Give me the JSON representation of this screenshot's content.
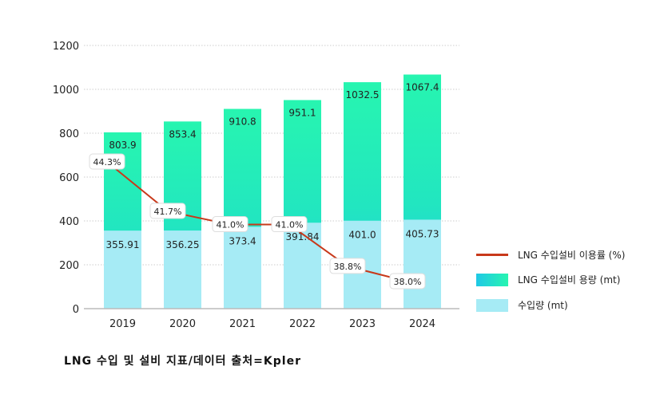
{
  "chart_data": {
    "type": "bar",
    "categories": [
      "2019",
      "2020",
      "2021",
      "2022",
      "2023",
      "2024"
    ],
    "ylim": [
      0,
      1200
    ],
    "yticks": [
      0,
      200,
      400,
      600,
      800,
      1000,
      1200
    ],
    "grid": true,
    "legend_placement": "right",
    "series": [
      {
        "name": "LNG 수입설비 이용률 (%)",
        "type": "line",
        "values": [
          44.3,
          41.7,
          41.0,
          41.0,
          38.8,
          38.0
        ],
        "labels": [
          "44.3%",
          "41.7%",
          "41.0%",
          "41.0%",
          "38.8%",
          "38.0%"
        ],
        "color": "#c8391b"
      },
      {
        "name": "LNG 수입설비 용량 (mt)",
        "type": "bar",
        "values": [
          803.9,
          853.4,
          910.8,
          951.1,
          1032.5,
          1067.4
        ],
        "labels": [
          "803.9",
          "853.4",
          "910.8",
          "951.1",
          "1032.5",
          "1067.4"
        ],
        "color_top": "#27f5b0",
        "color_bottom": "#1fc8e6"
      },
      {
        "name": "수입량 (mt)",
        "type": "bar",
        "values": [
          355.91,
          356.25,
          373.4,
          391.84,
          401.0,
          405.73
        ],
        "labels": [
          "355.91",
          "356.25",
          "373.4",
          "391.84",
          "401.0",
          "405.73"
        ],
        "color": "#a6ebf5"
      }
    ]
  },
  "caption": "LNG 수입 및 설비 지표/데이터 출처=Kpler"
}
